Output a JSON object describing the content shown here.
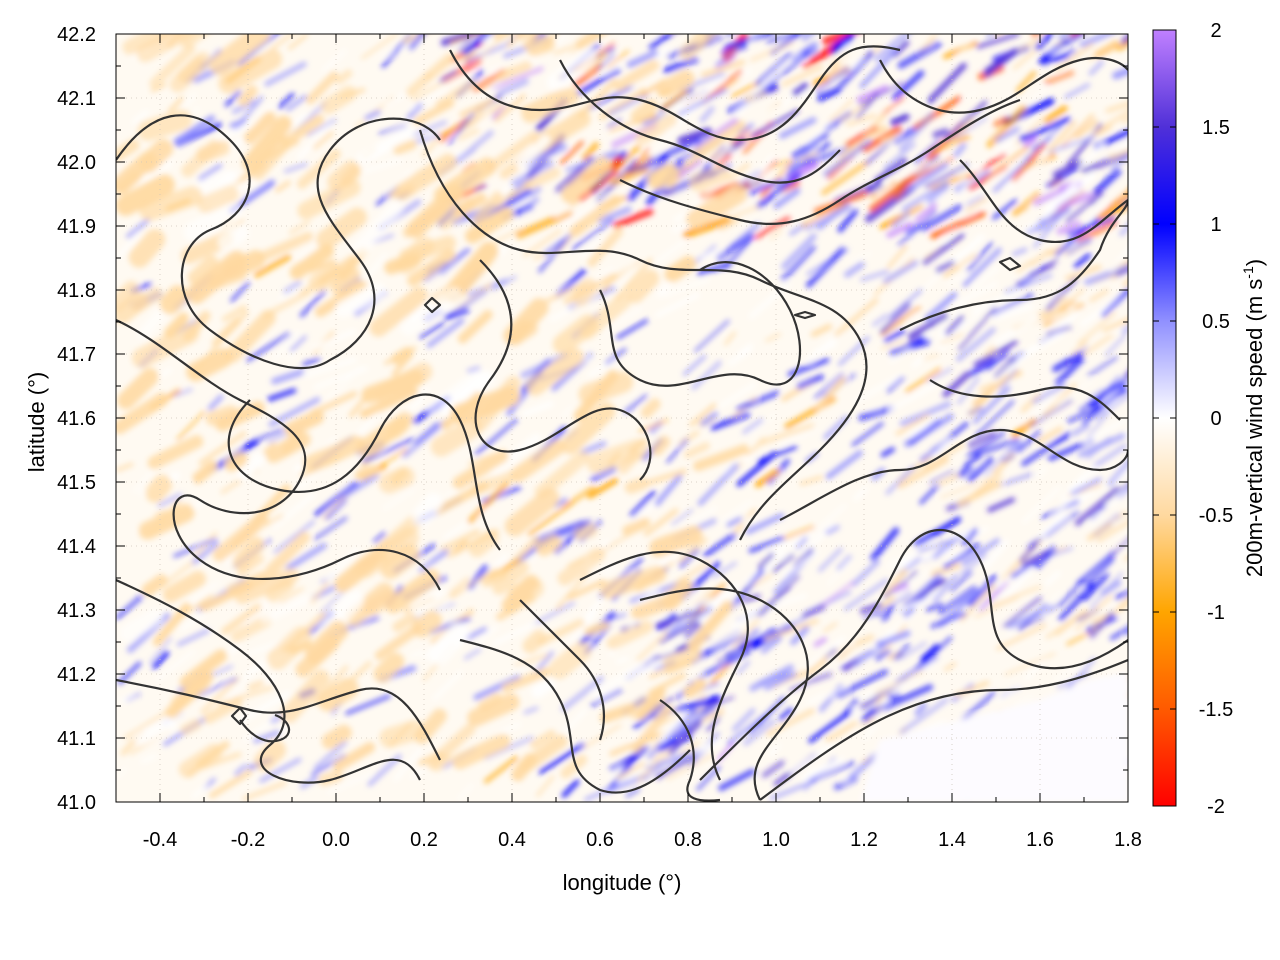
{
  "chart_data": {
    "type": "heatmap",
    "title": "",
    "xlabel": "longitude (°)",
    "ylabel": "latitude (°)",
    "colorbar_label": "200m-vertical wind speed (m s",
    "colorbar_label_exponent": "-1",
    "colorbar_label_close": ")",
    "xlim": [
      -0.5,
      1.8
    ],
    "ylim": [
      41.0,
      42.2
    ],
    "x_ticks": [
      -0.4,
      -0.2,
      0.0,
      0.2,
      0.4,
      0.6,
      0.8,
      1.0,
      1.2,
      1.4,
      1.6,
      1.8
    ],
    "x_tick_labels": [
      "-0.4",
      "-0.2",
      "0.0",
      "0.2",
      "0.4",
      "0.6",
      "0.8",
      "1.0",
      "1.2",
      "1.4",
      "1.6",
      "1.8"
    ],
    "y_ticks": [
      41.0,
      41.1,
      41.2,
      41.3,
      41.4,
      41.5,
      41.6,
      41.7,
      41.8,
      41.9,
      42.0,
      42.1,
      42.2
    ],
    "y_tick_labels": [
      "41.0",
      "41.1",
      "41.2",
      "41.3",
      "41.4",
      "41.5",
      "41.6",
      "41.7",
      "41.8",
      "41.9",
      "42.0",
      "42.1",
      "42.2"
    ],
    "colorbar_range": [
      -2,
      2
    ],
    "colorbar_ticks": [
      -2,
      -1.5,
      -1,
      -0.5,
      0,
      0.5,
      1,
      1.5,
      2
    ],
    "colorbar_tick_labels": [
      "-2",
      "-1.5",
      "-1",
      "-0.5",
      "0",
      "0.5",
      "1",
      "1.5",
      "2"
    ],
    "colormap": [
      {
        "value": -2.0,
        "color": "#ff0000"
      },
      {
        "value": -1.5,
        "color": "#ff5a00"
      },
      {
        "value": -1.0,
        "color": "#ffa500"
      },
      {
        "value": -0.5,
        "color": "#ffd9a0"
      },
      {
        "value": 0.0,
        "color": "#ffffff"
      },
      {
        "value": 0.5,
        "color": "#9090ff"
      },
      {
        "value": 1.0,
        "color": "#0000ff"
      },
      {
        "value": 1.5,
        "color": "#5030d8"
      },
      {
        "value": 2.0,
        "color": "#c080ff"
      }
    ],
    "grid": true,
    "contours": true,
    "contour_color": "#333333"
  }
}
